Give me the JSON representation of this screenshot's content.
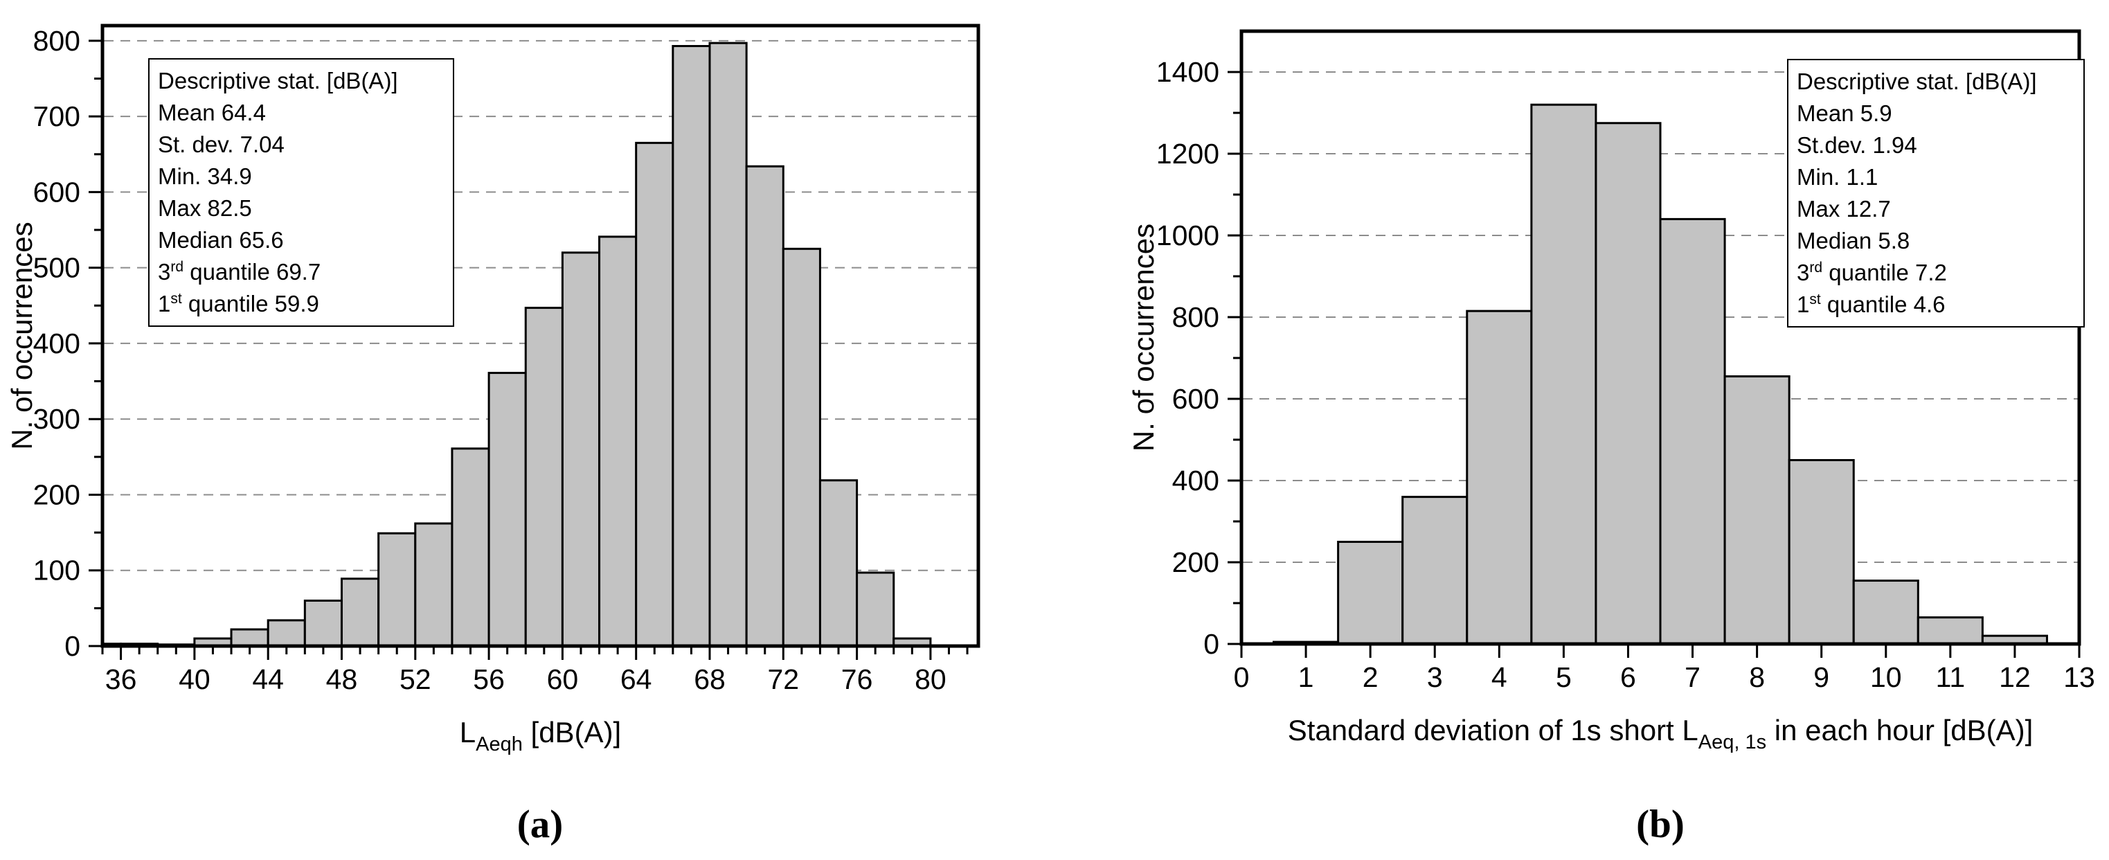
{
  "figure": {
    "background": "#ffffff",
    "bar_fill": "#c3c3c3",
    "bar_stroke": "#000000",
    "grid_color": "#8c8c8c",
    "axis_color": "#000000",
    "text_color": "#000000"
  },
  "chart_data": [
    {
      "type": "bar",
      "panel_label": "(a)",
      "ylabel": "N. of occurrences",
      "xlabel": {
        "pre": "L",
        "sub": "Aeqh",
        "post": " [dB(A)]"
      },
      "xlim": [
        35,
        82.6
      ],
      "ylim": [
        0,
        820
      ],
      "x_major_ticks": [
        36,
        40,
        44,
        48,
        52,
        56,
        60,
        64,
        68,
        72,
        76,
        80
      ],
      "x_minor_tick_step": 1,
      "y_major_ticks": [
        0,
        100,
        200,
        300,
        400,
        500,
        600,
        700,
        800
      ],
      "y_minor_tick_step": 50,
      "grid": "horizontal-dashed",
      "legend_position": "none",
      "bin_width": 2,
      "bin_start": [
        34,
        36,
        38,
        40,
        42,
        44,
        46,
        48,
        50,
        52,
        54,
        56,
        58,
        60,
        62,
        64,
        66,
        68,
        70,
        72,
        74,
        76,
        78
      ],
      "counts": [
        3,
        3,
        2,
        10,
        22,
        34,
        60,
        89,
        149,
        162,
        261,
        361,
        447,
        520,
        541,
        665,
        793,
        797,
        634,
        525,
        219,
        97,
        10
      ],
      "stats_box": {
        "title": "Descriptive stat. [dB(A)]",
        "lines": [
          {
            "text": "Mean 64.4"
          },
          {
            "text": "St. dev. 7.04"
          },
          {
            "text": "Min. 34.9"
          },
          {
            "text": "Max 82.5"
          },
          {
            "text": "Median 65.6"
          },
          {
            "pre": "3",
            "sup": "rd",
            "post": " quantile 69.7"
          },
          {
            "pre": "1",
            "sup": "st",
            "post": " quantile 59.9"
          }
        ]
      }
    },
    {
      "type": "bar",
      "panel_label": "(b)",
      "ylabel": "N. of occurrences",
      "xlabel": {
        "pre": "Standard deviation of 1s short L",
        "sub": "Aeq, 1s",
        "post": " in each hour [dB(A)]"
      },
      "xlim": [
        0,
        13
      ],
      "ylim": [
        0,
        1500
      ],
      "x_major_ticks": [
        0,
        1,
        2,
        3,
        4,
        5,
        6,
        7,
        8,
        9,
        10,
        11,
        12,
        13
      ],
      "x_minor_tick_step": null,
      "y_major_ticks": [
        0,
        200,
        400,
        600,
        800,
        1000,
        1200,
        1400
      ],
      "y_minor_tick_step": 100,
      "grid": "horizontal-dashed",
      "legend_position": "none",
      "bin_width": 1,
      "bin_start": [
        0.5,
        1.5,
        2.5,
        3.5,
        4.5,
        5.5,
        6.5,
        7.5,
        8.5,
        9.5,
        10.5,
        11.5
      ],
      "counts": [
        5,
        250,
        360,
        815,
        1320,
        1275,
        1040,
        655,
        450,
        155,
        65,
        20
      ],
      "stats_box": {
        "title": "Descriptive stat. [dB(A)]",
        "lines": [
          {
            "text": "Mean 5.9"
          },
          {
            "text": "St.dev. 1.94"
          },
          {
            "text": "Min. 1.1"
          },
          {
            "text": "Max 12.7"
          },
          {
            "text": "Median 5.8"
          },
          {
            "pre": "3",
            "sup": "rd",
            "post": " quantile 7.2"
          },
          {
            "pre": "1",
            "sup": "st",
            "post": " quantile 4.6"
          }
        ]
      }
    }
  ]
}
